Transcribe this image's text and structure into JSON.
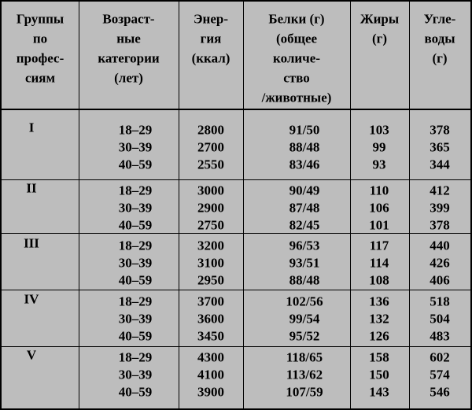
{
  "table": {
    "header": [
      [
        "Группы",
        "по",
        "профес-",
        "сиям"
      ],
      [
        "Возраст-",
        "ные",
        "категории",
        "(лет)"
      ],
      [
        "Энер-",
        "гия",
        "(ккал)"
      ],
      [
        "Белки (г)",
        "(общее",
        "количе-",
        "ство",
        "/животные)"
      ],
      [
        "Жиры",
        "(г)"
      ],
      [
        "Угле-",
        "воды",
        "(г)"
      ]
    ],
    "groups": [
      {
        "label": "I",
        "rows": [
          [
            "18–29",
            "2800",
            "91/50",
            "103",
            "378"
          ],
          [
            "30–39",
            "2700",
            "88/48",
            "99",
            "365"
          ],
          [
            "40–59",
            "2550",
            "83/46",
            "93",
            "344"
          ]
        ]
      },
      {
        "label": "II",
        "rows": [
          [
            "18–29",
            "3000",
            "90/49",
            "110",
            "412"
          ],
          [
            "30–39",
            "2900",
            "87/48",
            "106",
            "399"
          ],
          [
            "40–59",
            "2750",
            "82/45",
            "101",
            "378"
          ]
        ]
      },
      {
        "label": "III",
        "rows": [
          [
            "18–29",
            "3200",
            "96/53",
            "117",
            "440"
          ],
          [
            "30–39",
            "3100",
            "93/51",
            "114",
            "426"
          ],
          [
            "40–59",
            "2950",
            "88/48",
            "108",
            "406"
          ]
        ]
      },
      {
        "label": "IV",
        "rows": [
          [
            "18–29",
            "3700",
            "102/56",
            "136",
            "518"
          ],
          [
            "30–39",
            "3600",
            "99/54",
            "132",
            "504"
          ],
          [
            "40–59",
            "3450",
            "95/52",
            "126",
            "483"
          ]
        ]
      },
      {
        "label": "V",
        "rows": [
          [
            "18–29",
            "4300",
            "118/65",
            "158",
            "602"
          ],
          [
            "30–39",
            "4100",
            "113/62",
            "150",
            "574"
          ],
          [
            "40–59",
            "3900",
            "107/59",
            "143",
            "546"
          ]
        ]
      }
    ]
  }
}
